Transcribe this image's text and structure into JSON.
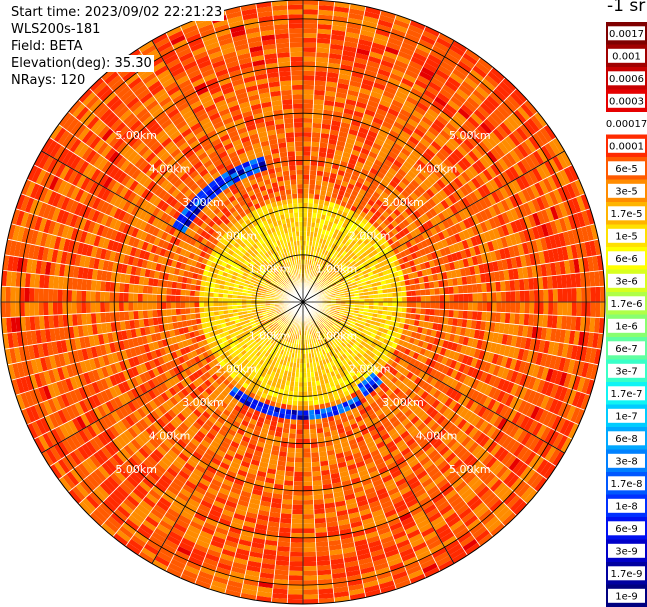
{
  "header": {
    "start_time": "Start time: 2023/09/02 22:21:23",
    "instrument": "WLS200s-181",
    "field": "Field: BETA",
    "elevation": "Elevation(deg): 35.30",
    "nrays": "NRays: 120"
  },
  "chart_data": {
    "type": "heatmap",
    "projection": "polar",
    "field": "BETA",
    "n_rays": 120,
    "elevation_deg": 35.3,
    "max_range_km": 6.4,
    "ring_labels": [
      "1.00km",
      "2.00km",
      "3.00km",
      "4.00km",
      "5.00km"
    ],
    "rings_km": [
      1,
      2,
      3,
      4,
      5,
      6
    ],
    "spoke_angles_deg": [
      0,
      30,
      60,
      90,
      120,
      150,
      180,
      210,
      240,
      270,
      300,
      330
    ],
    "colorbar": {
      "unit": "-1 sr",
      "ticks": [
        "0.0017",
        "0.001",
        "0.0006",
        "0.0003",
        "0.00017",
        "0.0001",
        "6e-5",
        "3e-5",
        "1.7e-5",
        "1e-5",
        "6e-6",
        "3e-6",
        "1.7e-6",
        "1e-6",
        "6e-7",
        "3e-7",
        "1.7e-7",
        "1e-7",
        "6e-8",
        "3e-8",
        "1.7e-8",
        "1e-8",
        "6e-9",
        "3e-9",
        "1.7e-9",
        "1e-9"
      ],
      "colors": [
        "#7f0000",
        "#a00000",
        "#c80000",
        "#e60000",
        "#ffffff",
        "#ff2a00",
        "#ff5a00",
        "#ff8c00",
        "#ffb400",
        "#ffe000",
        "#ffff00",
        "#d8ff20",
        "#b0ff48",
        "#88ff70",
        "#60ffa0",
        "#38ffc8",
        "#10f4f4",
        "#00ccff",
        "#00a8ff",
        "#0080ff",
        "#0058ff",
        "#0030ff",
        "#0010f0",
        "#0000c8",
        "#0000a0",
        "#000080"
      ]
    },
    "features": [
      {
        "range_km_min": 2.9,
        "range_km_max": 3.15,
        "azimuth_deg_min": -60,
        "azimuth_deg_max": -15,
        "level": "1e-4"
      },
      {
        "range_km_min": 2.3,
        "range_km_max": 2.5,
        "azimuth_deg_min": 150,
        "azimuth_deg_max": 218,
        "level": "1e-4"
      },
      {
        "range_km_min": 2.1,
        "range_km_max": 2.4,
        "azimuth_deg_min": 136,
        "azimuth_deg_max": 146,
        "level": "3e-5"
      }
    ]
  }
}
